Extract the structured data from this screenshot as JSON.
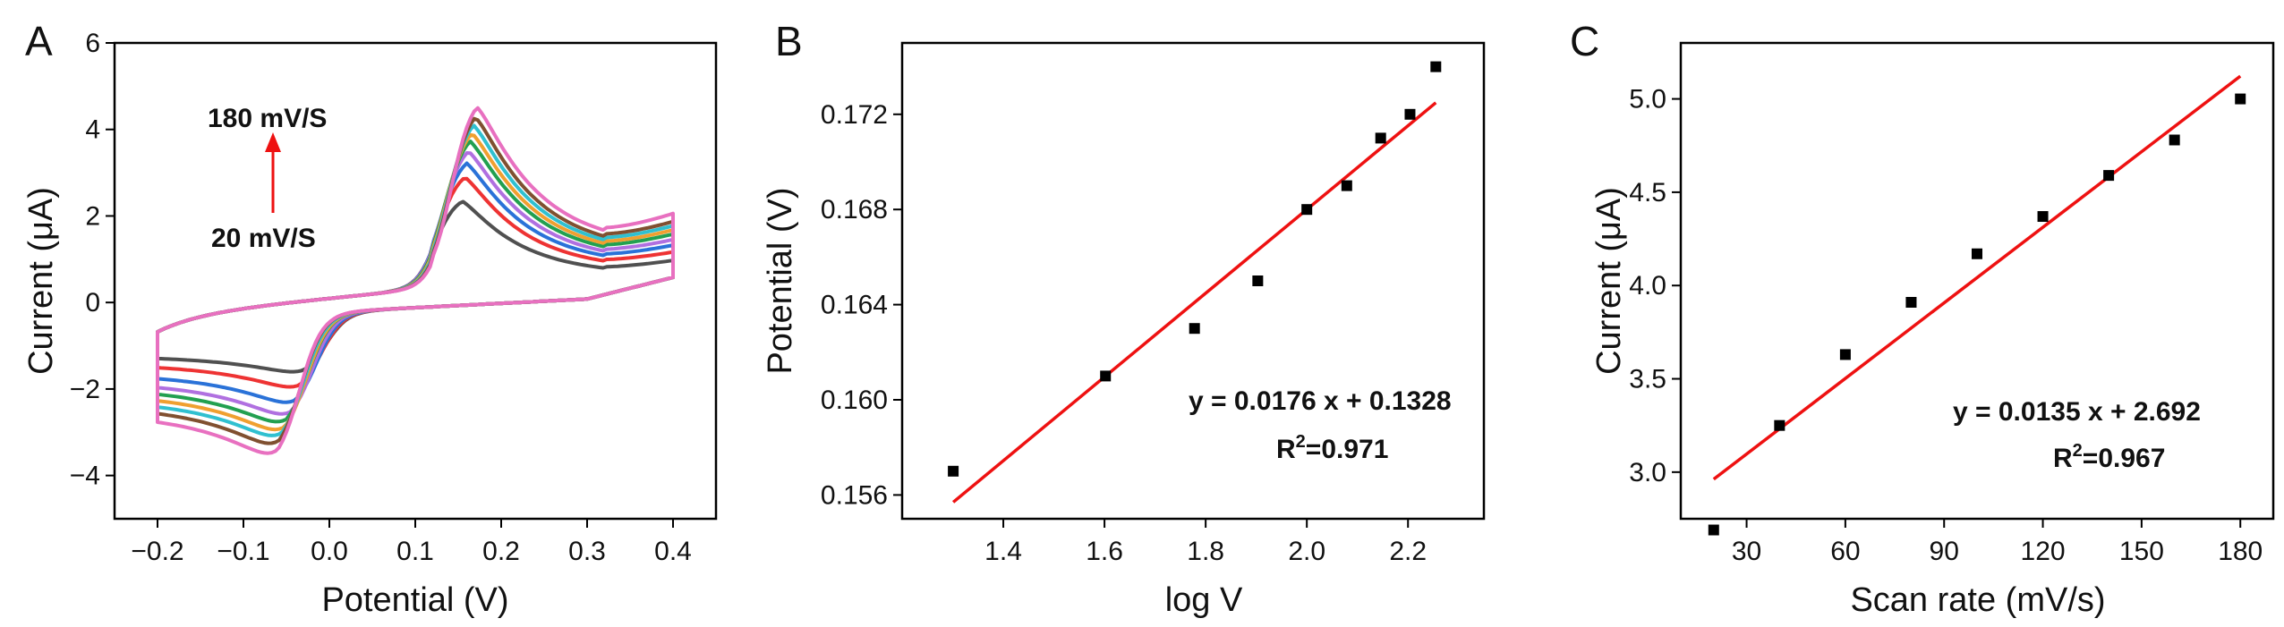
{
  "colors": {
    "fit_line": "#ee1111",
    "markers": "#000000",
    "arrow": "#ee1111",
    "cv_series": [
      "#505050",
      "#ee3333",
      "#2a72d8",
      "#b070e0",
      "#22a050",
      "#f0a030",
      "#30c0d0",
      "#805030",
      "#e870c0",
      "#a0b020",
      "#9a9a10"
    ]
  },
  "chart_data": [
    {
      "panel_letter": "A",
      "type": "line",
      "xlabel": "Potential (V)",
      "ylabel": "Current (μA)",
      "xlim": [
        -0.25,
        0.45
      ],
      "ylim": [
        -5,
        6
      ],
      "xticks": [
        "-0.2",
        "-0.1",
        "0.0",
        "0.1",
        "0.2",
        "0.3",
        "0.4"
      ],
      "yticks": [
        "-4",
        "-2",
        "0",
        "2",
        "4",
        "6"
      ],
      "annotations": {
        "top": "180 mV/S",
        "bottom": "20 mV/S"
      },
      "series": [
        {
          "scan_rate_mV_s": 20,
          "anodic_peak": [
            0.155,
            2.65
          ],
          "cathodic_peak": [
            -0.03,
            -1.95
          ],
          "i_end_fwd": 1.2,
          "i_end_rev": -1.15
        },
        {
          "scan_rate_mV_s": 40,
          "anodic_peak": [
            0.158,
            3.25
          ],
          "cathodic_peak": [
            -0.035,
            -2.35
          ],
          "i_end_fwd": 1.5,
          "i_end_rev": -1.35
        },
        {
          "scan_rate_mV_s": 60,
          "anodic_peak": [
            0.16,
            3.6
          ],
          "cathodic_peak": [
            -0.04,
            -2.75
          ],
          "i_end_fwd": 1.75,
          "i_end_rev": -1.6
        },
        {
          "scan_rate_mV_s": 80,
          "anodic_peak": [
            0.162,
            3.9
          ],
          "cathodic_peak": [
            -0.045,
            -3.05
          ],
          "i_end_fwd": 1.95,
          "i_end_rev": -1.8
        },
        {
          "scan_rate_mV_s": 100,
          "anodic_peak": [
            0.164,
            4.15
          ],
          "cathodic_peak": [
            -0.05,
            -3.25
          ],
          "i_end_fwd": 2.15,
          "i_end_rev": -1.95
        },
        {
          "scan_rate_mV_s": 120,
          "anodic_peak": [
            0.166,
            4.35
          ],
          "cathodic_peak": [
            -0.052,
            -3.45
          ],
          "i_end_fwd": 2.3,
          "i_end_rev": -2.1
        },
        {
          "scan_rate_mV_s": 140,
          "anodic_peak": [
            0.168,
            4.55
          ],
          "cathodic_peak": [
            -0.055,
            -3.6
          ],
          "i_end_fwd": 2.45,
          "i_end_rev": -2.25
        },
        {
          "scan_rate_mV_s": 160,
          "anodic_peak": [
            0.17,
            4.75
          ],
          "cathodic_peak": [
            -0.058,
            -3.8
          ],
          "i_end_fwd": 2.6,
          "i_end_rev": -2.4
        },
        {
          "scan_rate_mV_s": 180,
          "anodic_peak": [
            0.172,
            5.0
          ],
          "cathodic_peak": [
            -0.06,
            -4.05
          ],
          "i_end_fwd": 2.9,
          "i_end_rev": -2.6
        }
      ]
    },
    {
      "panel_letter": "B",
      "type": "scatter",
      "xlabel": "log V",
      "ylabel": "Potential (V)",
      "xlim": [
        1.2,
        2.35
      ],
      "ylim": [
        0.155,
        0.175
      ],
      "xticks": [
        "1.4",
        "1.6",
        "1.8",
        "2.0",
        "2.2"
      ],
      "yticks": [
        "0.156",
        "0.160",
        "0.164",
        "0.168",
        "0.172"
      ],
      "x": [
        1.301,
        1.602,
        1.778,
        1.903,
        2.0,
        2.079,
        2.146,
        2.204,
        2.255
      ],
      "y": [
        0.157,
        0.161,
        0.163,
        0.165,
        0.168,
        0.169,
        0.171,
        0.172,
        0.174
      ],
      "fit": {
        "slope": 0.0176,
        "intercept": 0.1328,
        "x_range": [
          1.301,
          2.255
        ]
      },
      "equation": "y = 0.0176 x + 0.1328",
      "r2_value": "=0.971"
    },
    {
      "panel_letter": "C",
      "type": "scatter",
      "xlabel": "Scan rate (mV/s)",
      "ylabel": "Current (μA)",
      "xlim": [
        10,
        190
      ],
      "ylim": [
        2.75,
        5.3
      ],
      "xticks": [
        "30",
        "60",
        "90",
        "120",
        "150",
        "180"
      ],
      "yticks": [
        "3.0",
        "3.5",
        "4.0",
        "4.5",
        "5.0"
      ],
      "x": [
        20,
        40,
        60,
        80,
        100,
        120,
        140,
        160,
        180
      ],
      "y": [
        2.69,
        3.25,
        3.63,
        3.91,
        4.17,
        4.37,
        4.59,
        4.78,
        5.0
      ],
      "fit": {
        "slope": 0.0135,
        "intercept": 2.692,
        "x_range": [
          20,
          180
        ]
      },
      "equation": "y = 0.0135 x + 2.692",
      "r2_value": "=0.967"
    }
  ]
}
